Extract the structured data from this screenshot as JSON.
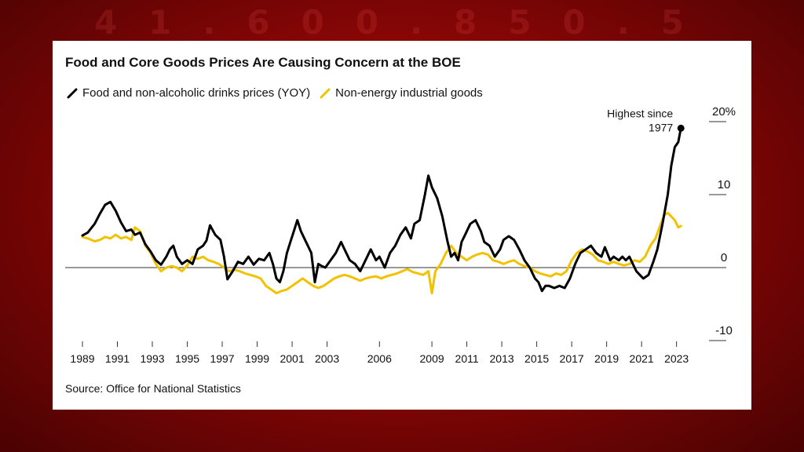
{
  "background": {
    "color": "#9a0808"
  },
  "chart_data": {
    "type": "line",
    "title": "Food and Core Goods Prices Are Causing Concern at the BOE",
    "source": "Source: Office for National Statistics",
    "y_ticks": [
      {
        "value": 20,
        "label": "20%"
      },
      {
        "value": 10,
        "label": "10"
      },
      {
        "value": 0,
        "label": "0"
      },
      {
        "value": -10,
        "label": "-10"
      }
    ],
    "ylim": [
      -10,
      20
    ],
    "xlim": [
      1989,
      2023.6
    ],
    "x_ticks": [
      {
        "value": 1989,
        "label": "1989"
      },
      {
        "value": 1991,
        "label": "1991"
      },
      {
        "value": 1993,
        "label": "1993"
      },
      {
        "value": 1995,
        "label": "1995"
      },
      {
        "value": 1997,
        "label": "1997"
      },
      {
        "value": 1999,
        "label": "1999"
      },
      {
        "value": 2001,
        "label": "2001"
      },
      {
        "value": 2003,
        "label": "2003"
      },
      {
        "value": 2006,
        "label": "2006"
      },
      {
        "value": 2009,
        "label": "2009"
      },
      {
        "value": 2011,
        "label": "2011"
      },
      {
        "value": 2013,
        "label": "2013"
      },
      {
        "value": 2015,
        "label": "2015"
      },
      {
        "value": 2017,
        "label": "2017"
      },
      {
        "value": 2019,
        "label": "2019"
      },
      {
        "value": 2021,
        "label": "2021"
      },
      {
        "value": 2023,
        "label": "2023"
      }
    ],
    "annotation": {
      "text_line1": "Highest since",
      "text_line2": "1977",
      "x": 2023.1,
      "y": 19.1
    },
    "series": [
      {
        "name": "Food and non-alcoholic drinks prices (YOY)",
        "color": "#000000",
        "points": [
          [
            1989.0,
            4.4
          ],
          [
            1989.3,
            4.8
          ],
          [
            1989.7,
            6.0
          ],
          [
            1990.0,
            7.4
          ],
          [
            1990.3,
            8.6
          ],
          [
            1990.6,
            9.0
          ],
          [
            1990.9,
            7.8
          ],
          [
            1991.2,
            6.2
          ],
          [
            1991.5,
            5.0
          ],
          [
            1991.8,
            5.2
          ],
          [
            1992.0,
            4.5
          ],
          [
            1992.3,
            4.8
          ],
          [
            1992.6,
            3.2
          ],
          [
            1992.9,
            2.2
          ],
          [
            1993.2,
            1.0
          ],
          [
            1993.5,
            0.4
          ],
          [
            1993.8,
            1.5
          ],
          [
            1994.0,
            2.5
          ],
          [
            1994.2,
            3.0
          ],
          [
            1994.4,
            1.5
          ],
          [
            1994.7,
            0.5
          ],
          [
            1995.0,
            1.0
          ],
          [
            1995.3,
            0.5
          ],
          [
            1995.6,
            2.5
          ],
          [
            1995.9,
            3.0
          ],
          [
            1996.1,
            3.7
          ],
          [
            1996.3,
            5.8
          ],
          [
            1996.6,
            4.5
          ],
          [
            1996.9,
            3.8
          ],
          [
            1997.1,
            1.5
          ],
          [
            1997.3,
            -1.6
          ],
          [
            1997.6,
            -0.5
          ],
          [
            1997.9,
            0.8
          ],
          [
            1998.2,
            0.5
          ],
          [
            1998.5,
            1.5
          ],
          [
            1998.8,
            0.4
          ],
          [
            1999.1,
            1.2
          ],
          [
            1999.4,
            1.0
          ],
          [
            1999.7,
            2.0
          ],
          [
            1999.9,
            0.5
          ],
          [
            2000.1,
            -1.5
          ],
          [
            2000.3,
            -2.0
          ],
          [
            2000.5,
            -0.5
          ],
          [
            2000.7,
            2.0
          ],
          [
            2000.9,
            3.5
          ],
          [
            2001.1,
            5.0
          ],
          [
            2001.3,
            6.5
          ],
          [
            2001.5,
            5.0
          ],
          [
            2001.7,
            4.0
          ],
          [
            2001.9,
            3.0
          ],
          [
            2002.1,
            2.0
          ],
          [
            2002.3,
            -2.0
          ],
          [
            2002.5,
            0.5
          ],
          [
            2002.7,
            0.2
          ],
          [
            2002.9,
            0.0
          ],
          [
            2003.2,
            1.0
          ],
          [
            2003.5,
            2.0
          ],
          [
            2003.8,
            3.5
          ],
          [
            2004.0,
            2.5
          ],
          [
            2004.3,
            1.0
          ],
          [
            2004.6,
            0.5
          ],
          [
            2004.9,
            -0.5
          ],
          [
            2005.2,
            1.0
          ],
          [
            2005.5,
            2.5
          ],
          [
            2005.8,
            1.0
          ],
          [
            2006.0,
            1.5
          ],
          [
            2006.3,
            0.0
          ],
          [
            2006.6,
            2.0
          ],
          [
            2006.9,
            3.0
          ],
          [
            2007.2,
            4.5
          ],
          [
            2007.5,
            5.5
          ],
          [
            2007.8,
            4.0
          ],
          [
            2008.0,
            6.0
          ],
          [
            2008.3,
            6.5
          ],
          [
            2008.6,
            10.0
          ],
          [
            2008.8,
            12.6
          ],
          [
            2009.0,
            11.0
          ],
          [
            2009.3,
            9.5
          ],
          [
            2009.6,
            7.0
          ],
          [
            2009.9,
            3.5
          ],
          [
            2010.1,
            1.5
          ],
          [
            2010.3,
            2.0
          ],
          [
            2010.5,
            1.0
          ],
          [
            2010.7,
            3.5
          ],
          [
            2010.9,
            4.5
          ],
          [
            2011.2,
            6.0
          ],
          [
            2011.5,
            6.5
          ],
          [
            2011.8,
            5.0
          ],
          [
            2012.0,
            3.5
          ],
          [
            2012.3,
            3.0
          ],
          [
            2012.6,
            1.5
          ],
          [
            2012.9,
            2.5
          ],
          [
            2013.1,
            3.8
          ],
          [
            2013.4,
            4.3
          ],
          [
            2013.7,
            3.8
          ],
          [
            2014.0,
            2.5
          ],
          [
            2014.3,
            1.0
          ],
          [
            2014.6,
            0.0
          ],
          [
            2014.9,
            -1.5
          ],
          [
            2015.1,
            -2.0
          ],
          [
            2015.3,
            -3.2
          ],
          [
            2015.5,
            -2.5
          ],
          [
            2015.7,
            -2.5
          ],
          [
            2016.0,
            -2.8
          ],
          [
            2016.3,
            -2.5
          ],
          [
            2016.6,
            -2.8
          ],
          [
            2016.9,
            -1.5
          ],
          [
            2017.2,
            0.5
          ],
          [
            2017.5,
            2.0
          ],
          [
            2017.8,
            2.5
          ],
          [
            2018.1,
            3.0
          ],
          [
            2018.4,
            2.0
          ],
          [
            2018.7,
            1.5
          ],
          [
            2018.9,
            2.8
          ],
          [
            2019.2,
            1.0
          ],
          [
            2019.4,
            1.5
          ],
          [
            2019.7,
            1.0
          ],
          [
            2019.9,
            1.5
          ],
          [
            2020.1,
            1.0
          ],
          [
            2020.3,
            1.5
          ],
          [
            2020.5,
            0.5
          ],
          [
            2020.7,
            -0.5
          ],
          [
            2020.9,
            -1.0
          ],
          [
            2021.1,
            -1.5
          ],
          [
            2021.4,
            -1.0
          ],
          [
            2021.7,
            1.0
          ],
          [
            2021.9,
            2.5
          ],
          [
            2022.2,
            6.0
          ],
          [
            2022.5,
            10.0
          ],
          [
            2022.7,
            14.0
          ],
          [
            2022.9,
            16.5
          ],
          [
            2023.1,
            17.2
          ],
          [
            2023.25,
            19.1
          ]
        ]
      },
      {
        "name": "Non-energy industrial goods",
        "color": "#f2c200",
        "points": [
          [
            1989.0,
            4.2
          ],
          [
            1989.3,
            4.0
          ],
          [
            1989.7,
            3.6
          ],
          [
            1990.0,
            3.8
          ],
          [
            1990.3,
            4.2
          ],
          [
            1990.6,
            4.0
          ],
          [
            1990.9,
            4.5
          ],
          [
            1991.2,
            4.0
          ],
          [
            1991.5,
            4.2
          ],
          [
            1991.8,
            3.8
          ],
          [
            1992.0,
            5.5
          ],
          [
            1992.3,
            5.0
          ],
          [
            1992.6,
            3.0
          ],
          [
            1992.9,
            2.0
          ],
          [
            1993.2,
            0.5
          ],
          [
            1993.5,
            -0.5
          ],
          [
            1993.8,
            0.0
          ],
          [
            1994.1,
            0.2
          ],
          [
            1994.4,
            0.0
          ],
          [
            1994.7,
            -0.5
          ],
          [
            1995.0,
            0.3
          ],
          [
            1995.3,
            1.5
          ],
          [
            1995.6,
            1.2
          ],
          [
            1995.9,
            1.5
          ],
          [
            1996.2,
            1.0
          ],
          [
            1996.5,
            0.8
          ],
          [
            1996.8,
            0.5
          ],
          [
            1997.1,
            0.0
          ],
          [
            1997.4,
            -0.5
          ],
          [
            1997.7,
            -0.3
          ],
          [
            1998.0,
            -0.5
          ],
          [
            1998.3,
            -0.8
          ],
          [
            1998.6,
            -1.0
          ],
          [
            1998.9,
            -1.2
          ],
          [
            1999.2,
            -1.5
          ],
          [
            1999.5,
            -2.5
          ],
          [
            1999.8,
            -3.0
          ],
          [
            2000.1,
            -3.5
          ],
          [
            2000.4,
            -3.2
          ],
          [
            2000.7,
            -3.0
          ],
          [
            2001.0,
            -2.5
          ],
          [
            2001.3,
            -2.0
          ],
          [
            2001.6,
            -1.5
          ],
          [
            2001.9,
            -2.0
          ],
          [
            2002.2,
            -2.5
          ],
          [
            2002.5,
            -2.8
          ],
          [
            2002.8,
            -2.5
          ],
          [
            2003.1,
            -2.0
          ],
          [
            2003.4,
            -1.5
          ],
          [
            2003.7,
            -1.2
          ],
          [
            2004.0,
            -1.0
          ],
          [
            2004.3,
            -1.2
          ],
          [
            2004.6,
            -1.5
          ],
          [
            2004.9,
            -1.8
          ],
          [
            2005.2,
            -1.5
          ],
          [
            2005.5,
            -1.3
          ],
          [
            2005.8,
            -1.2
          ],
          [
            2006.1,
            -1.5
          ],
          [
            2006.4,
            -1.2
          ],
          [
            2006.7,
            -1.0
          ],
          [
            2007.0,
            -0.8
          ],
          [
            2007.3,
            -0.5
          ],
          [
            2007.6,
            -0.2
          ],
          [
            2007.9,
            -0.6
          ],
          [
            2008.2,
            -0.8
          ],
          [
            2008.5,
            -1.0
          ],
          [
            2008.8,
            -0.5
          ],
          [
            2009.0,
            -3.5
          ],
          [
            2009.2,
            -0.5
          ],
          [
            2009.5,
            0.5
          ],
          [
            2009.8,
            2.0
          ],
          [
            2010.1,
            3.0
          ],
          [
            2010.4,
            2.0
          ],
          [
            2010.7,
            1.5
          ],
          [
            2011.0,
            1.0
          ],
          [
            2011.3,
            1.5
          ],
          [
            2011.6,
            1.8
          ],
          [
            2011.9,
            2.0
          ],
          [
            2012.2,
            1.8
          ],
          [
            2012.5,
            1.0
          ],
          [
            2012.8,
            0.8
          ],
          [
            2013.1,
            0.5
          ],
          [
            2013.4,
            0.8
          ],
          [
            2013.7,
            1.0
          ],
          [
            2014.0,
            0.5
          ],
          [
            2014.3,
            0.2
          ],
          [
            2014.6,
            0.0
          ],
          [
            2014.9,
            -0.5
          ],
          [
            2015.2,
            -0.8
          ],
          [
            2015.5,
            -1.0
          ],
          [
            2015.8,
            -1.2
          ],
          [
            2016.1,
            -0.8
          ],
          [
            2016.4,
            -1.0
          ],
          [
            2016.7,
            -0.5
          ],
          [
            2017.0,
            1.0
          ],
          [
            2017.3,
            2.0
          ],
          [
            2017.6,
            2.5
          ],
          [
            2017.9,
            2.2
          ],
          [
            2018.2,
            1.8
          ],
          [
            2018.5,
            1.0
          ],
          [
            2018.8,
            0.8
          ],
          [
            2019.1,
            0.5
          ],
          [
            2019.4,
            0.8
          ],
          [
            2019.7,
            0.5
          ],
          [
            2020.0,
            0.3
          ],
          [
            2020.3,
            0.5
          ],
          [
            2020.6,
            1.0
          ],
          [
            2020.9,
            0.8
          ],
          [
            2021.2,
            1.5
          ],
          [
            2021.5,
            3.0
          ],
          [
            2021.8,
            4.0
          ],
          [
            2022.1,
            6.0
          ],
          [
            2022.3,
            7.2
          ],
          [
            2022.5,
            7.5
          ],
          [
            2022.7,
            7.0
          ],
          [
            2022.9,
            6.5
          ],
          [
            2023.1,
            5.5
          ],
          [
            2023.25,
            5.7
          ]
        ]
      }
    ]
  }
}
